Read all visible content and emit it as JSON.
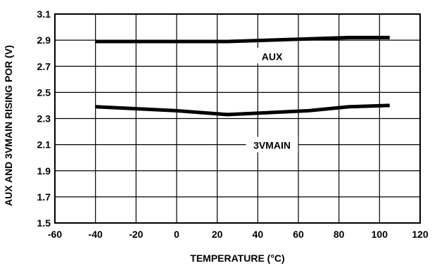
{
  "chart_data": {
    "type": "line",
    "title": "",
    "xlabel": "TEMPERATURE (°C)",
    "ylabel": "AUX AND 3VMAIN RISING POR (V)",
    "xlim": [
      -60,
      120
    ],
    "ylim": [
      1.5,
      3.1
    ],
    "xticks": [
      -60,
      -40,
      -20,
      0,
      20,
      40,
      60,
      80,
      100,
      120
    ],
    "yticks": [
      1.5,
      1.7,
      1.9,
      2.1,
      2.3,
      2.5,
      2.7,
      2.9,
      3.1
    ],
    "xtick_labels": [
      "-60",
      "-40",
      "-20",
      "0",
      "20",
      "40",
      "60",
      "80",
      "100",
      "120"
    ],
    "ytick_labels": [
      "1.5",
      "1.7",
      "1.9",
      "2.1",
      "2.3",
      "2.5",
      "2.7",
      "2.9",
      "3.1"
    ],
    "grid": true,
    "legend": "none",
    "series": [
      {
        "name": "AUX",
        "x": [
          -40,
          25,
          85,
          105
        ],
        "y": [
          2.89,
          2.89,
          2.92,
          2.92
        ],
        "color": "#000000"
      },
      {
        "name": "3VMAIN",
        "x": [
          -40,
          0,
          25,
          65,
          85,
          105
        ],
        "y": [
          2.39,
          2.36,
          2.33,
          2.36,
          2.39,
          2.4
        ],
        "color": "#000000"
      }
    ],
    "annotations": [
      {
        "text": "AUX",
        "x": 47,
        "y": 2.77
      },
      {
        "text": "3VMAIN",
        "x": 47,
        "y": 2.09
      }
    ]
  }
}
